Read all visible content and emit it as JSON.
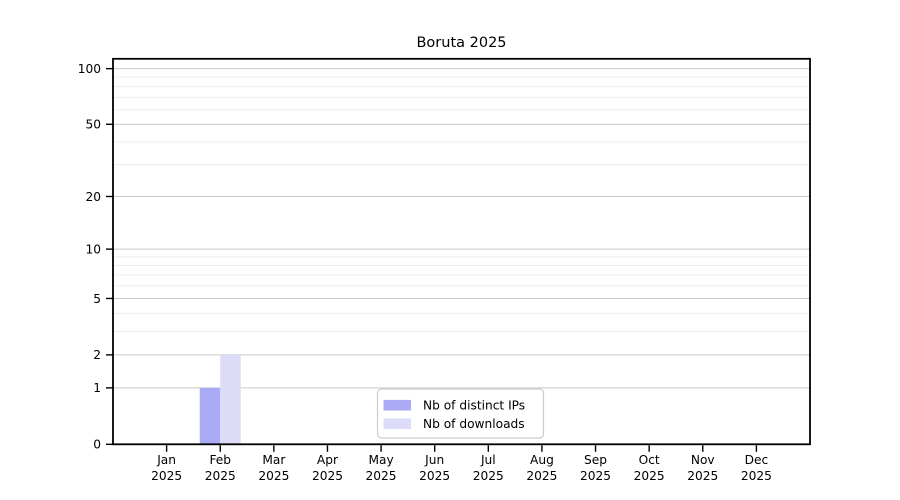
{
  "title": "Boruta 2025",
  "figure": {
    "background": "#ffffff",
    "axis_color": "#000000",
    "text_color": "#000000",
    "gridline_major_color": "#c9c9c9",
    "gridline_minor_color": "#ececec",
    "legend_border_color": "#cccccc",
    "legend_background": "#ffffff"
  },
  "chart_data": {
    "type": "bar",
    "title": "Boruta 2025",
    "x": {
      "months": [
        "Jan",
        "Feb",
        "Mar",
        "Apr",
        "May",
        "Jun",
        "Jul",
        "Aug",
        "Sep",
        "Oct",
        "Nov",
        "Dec"
      ],
      "year": "2025"
    },
    "series": [
      {
        "name": "Nb of distinct IPs",
        "color": "#aaaaf7",
        "values": [
          0,
          1,
          0,
          0,
          0,
          0,
          0,
          0,
          0,
          0,
          0,
          0
        ]
      },
      {
        "name": "Nb of downloads",
        "color": "#dcdcf9",
        "values": [
          0,
          2,
          0,
          0,
          0,
          0,
          0,
          0,
          0,
          0,
          0,
          0
        ]
      }
    ],
    "y_axis": {
      "scale": "log1p",
      "tick_values": [
        0,
        1,
        2,
        5,
        10,
        20,
        50,
        100
      ],
      "minor_gridline_values": [
        3,
        4,
        6,
        7,
        8,
        9,
        30,
        40,
        60,
        70,
        80,
        90
      ],
      "ylim": [
        0,
        113
      ]
    },
    "legend": {
      "position": "lower center",
      "entries": [
        "Nb of distinct IPs",
        "Nb of downloads"
      ]
    },
    "grid": "horizontal"
  }
}
